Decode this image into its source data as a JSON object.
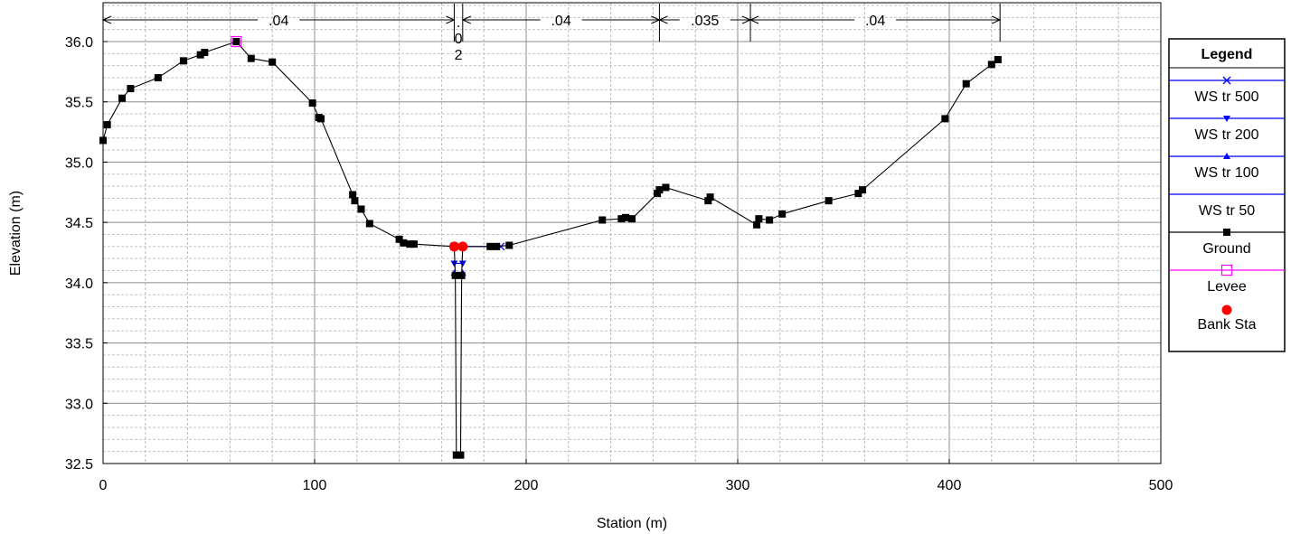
{
  "chart_data": {
    "type": "line",
    "xlabel": "Station (m)",
    "ylabel": "Elevation (m)",
    "xlim": [
      0,
      500
    ],
    "ylim": [
      32.5,
      36.0
    ],
    "x_ticks": [
      "0",
      "100",
      "200",
      "300",
      "400",
      "500"
    ],
    "y_ticks": [
      "32.5",
      "33.0",
      "33.5",
      "34.0",
      "34.5",
      "35.0",
      "35.5",
      "36.0"
    ],
    "grid": true,
    "legend": {
      "title": "Legend",
      "position": "right",
      "entries": [
        {
          "name": "WS tr 500",
          "color": "#0000ff",
          "marker": "x"
        },
        {
          "name": "WS tr 200",
          "color": "#0000ff",
          "marker": "triangle-down"
        },
        {
          "name": "WS tr 100",
          "color": "#0000ff",
          "marker": "triangle-up"
        },
        {
          "name": "WS tr 50",
          "color": "#0000ff",
          "marker": "none"
        },
        {
          "name": "Ground",
          "color": "#000000",
          "marker": "square"
        },
        {
          "name": "Levee",
          "color": "#ff00ff",
          "marker": "open-square"
        },
        {
          "name": "Bank Sta",
          "color": "#ff0000",
          "marker": "circle"
        }
      ]
    },
    "manning_n": [
      {
        "label": ".04",
        "from": 0,
        "to": 166
      },
      {
        "label": ".02",
        "from": 166,
        "to": 170
      },
      {
        "label": ".04",
        "from": 170,
        "to": 263
      },
      {
        "label": ".035",
        "from": 263,
        "to": 306
      },
      {
        "label": ".04",
        "from": 306,
        "to": 424
      }
    ],
    "series": [
      {
        "name": "Ground",
        "color": "#000000",
        "x": [
          0,
          2,
          9,
          13,
          26,
          38,
          46,
          48,
          63,
          70,
          80,
          99,
          102,
          103,
          118,
          119,
          122,
          126,
          140,
          142,
          145,
          147,
          166,
          166.5,
          167,
          169,
          169.5,
          170,
          183,
          186,
          192,
          236,
          245,
          247,
          250,
          262,
          263,
          266,
          286,
          287,
          309,
          310,
          315,
          321,
          343,
          357,
          359,
          398,
          408,
          420,
          423
        ],
        "y": [
          35.18,
          35.31,
          35.53,
          35.61,
          35.7,
          35.84,
          35.89,
          35.91,
          36.0,
          35.86,
          35.83,
          35.49,
          35.37,
          35.36,
          34.73,
          34.68,
          34.61,
          34.49,
          34.36,
          34.33,
          34.32,
          34.32,
          34.3,
          34.06,
          32.57,
          32.57,
          34.06,
          34.3,
          34.3,
          34.3,
          34.31,
          34.52,
          34.53,
          34.54,
          34.53,
          34.74,
          34.77,
          34.79,
          34.68,
          34.71,
          34.48,
          34.53,
          34.52,
          34.57,
          34.68,
          34.74,
          34.77,
          35.36,
          35.65,
          35.81,
          35.85
        ]
      },
      {
        "name": "WS tr 500",
        "color": "#0000ff",
        "x": [
          166,
          188
        ],
        "y": [
          34.3,
          34.3
        ]
      },
      {
        "name": "WS tr 200",
        "color": "#0000ff",
        "x": [
          166,
          170
        ],
        "y": [
          34.16,
          34.16
        ]
      },
      {
        "name": "WS tr 100",
        "color": "#0000ff",
        "x": [
          166,
          170
        ],
        "y": [
          34.08,
          34.08
        ]
      },
      {
        "name": "WS tr 50",
        "color": "#0000ff",
        "x": [
          166,
          170
        ],
        "y": [
          34.05,
          34.05
        ]
      },
      {
        "name": "Levee",
        "color": "#ff00ff",
        "x": [
          63
        ],
        "y": [
          36.0
        ]
      },
      {
        "name": "Bank Sta",
        "color": "#ff0000",
        "x": [
          166,
          170
        ],
        "y": [
          34.3,
          34.3
        ]
      }
    ]
  }
}
